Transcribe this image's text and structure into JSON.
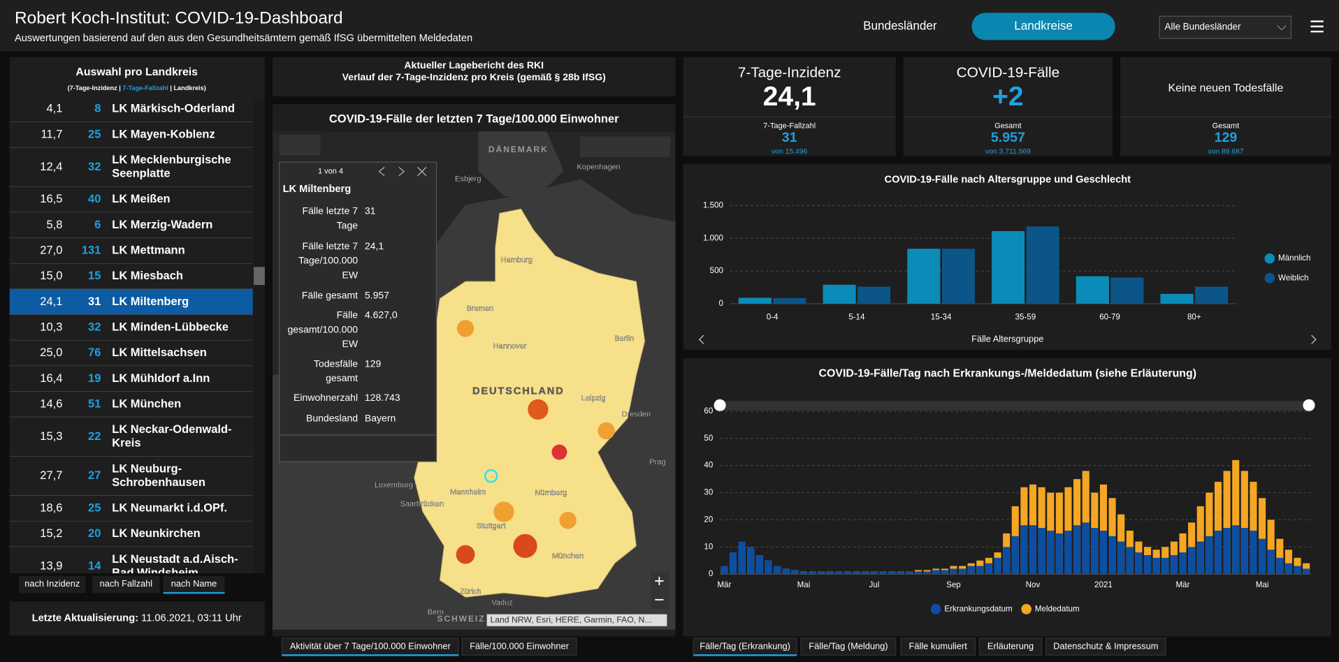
{
  "header": {
    "title": "Robert Koch-Institut: COVID-19-Dashboard",
    "subtitle": "Auswertungen basierend auf den aus den Gesundheitsämtern gemäß IfSG übermittelten Meldedaten",
    "nav": [
      "Bundesländer",
      "Landkreise"
    ],
    "active_nav": 1,
    "dropdown": "Alle Bundesländer"
  },
  "list": {
    "title": "Auswahl pro Landkreis",
    "legend": [
      "(7-Tage-Inzidenz | ",
      "7-Tage-Fallzahl",
      " | Landkreis)"
    ],
    "selected": 7,
    "rows": [
      {
        "incidence": "4,1",
        "cases": 8,
        "name": [
          "LK Märkisch-Oderland"
        ]
      },
      {
        "incidence": "11,7",
        "cases": 25,
        "name": [
          "LK Mayen-Koblenz"
        ]
      },
      {
        "incidence": "12,4",
        "cases": 32,
        "name": [
          "LK Mecklenburgische",
          "Seenplatte"
        ]
      },
      {
        "incidence": "16,5",
        "cases": 40,
        "name": [
          "LK Meißen"
        ]
      },
      {
        "incidence": "5,8",
        "cases": 6,
        "name": [
          "LK Merzig-Wadern"
        ]
      },
      {
        "incidence": "27,0",
        "cases": 131,
        "name": [
          "LK Mettmann"
        ]
      },
      {
        "incidence": "15,0",
        "cases": 15,
        "name": [
          "LK Miesbach"
        ]
      },
      {
        "incidence": "24,1",
        "cases": 31,
        "name": [
          "LK Miltenberg"
        ]
      },
      {
        "incidence": "10,3",
        "cases": 32,
        "name": [
          "LK Minden-Lübbecke"
        ]
      },
      {
        "incidence": "25,0",
        "cases": 76,
        "name": [
          "LK Mittelsachsen"
        ]
      },
      {
        "incidence": "16,4",
        "cases": 19,
        "name": [
          "LK Mühldorf a.Inn"
        ]
      },
      {
        "incidence": "14,6",
        "cases": 51,
        "name": [
          "LK München"
        ]
      },
      {
        "incidence": "15,3",
        "cases": 22,
        "name": [
          "LK Neckar-Odenwald-",
          "Kreis"
        ]
      },
      {
        "incidence": "27,7",
        "cases": 27,
        "name": [
          "LK Neuburg-",
          "Schrobenhausen"
        ]
      },
      {
        "incidence": "18,6",
        "cases": 25,
        "name": [
          "LK Neumarkt i.d.OPf."
        ]
      },
      {
        "incidence": "15,2",
        "cases": 20,
        "name": [
          "LK Neunkirchen"
        ]
      },
      {
        "incidence": "13,9",
        "cases": 14,
        "name": [
          "LK Neustadt a.d.Aisch-",
          "Bad Windsheim"
        ]
      }
    ],
    "sort_buttons": [
      "nach Inzidenz",
      "nach Fallzahl",
      "nach Name"
    ],
    "active_sort": 2,
    "updated_label": "Letzte Aktualisierung:",
    "updated_value": "11.06.2021, 03:11 Uhr"
  },
  "map": {
    "header": [
      "Aktueller Lagebericht des RKI",
      "Verlauf der 7-Tage-Inzidenz pro Kreis (gemäß § 28b IfSG)"
    ],
    "title": "COVID-19-Fälle der letzten 7 Tage/100.000 Einwohner",
    "labels": [
      "DÄNEMARK",
      "Esbjerg",
      "Kopenhagen",
      "Hamburg",
      "Bremen",
      "Hannover",
      "Berlin",
      "DEUTSCHLAND",
      "Leipzig",
      "Dresden",
      "Nürnberg",
      "Stuttgart",
      "München",
      "Prag",
      "Luxemburg",
      "Saarbrücken",
      "Mannheim",
      "Zürich",
      "Vaduz",
      "Bern",
      "SCHWEIZ"
    ],
    "popup": {
      "pager": "1 von 4",
      "title": "LK Miltenberg",
      "fields": [
        {
          "label": [
            "Fälle letzte 7",
            "Tage"
          ],
          "value": "31"
        },
        {
          "label": [
            "Fälle letzte 7",
            "Tage/100.000",
            "EW"
          ],
          "value": "24,1"
        },
        {
          "label": [
            "Fälle gesamt"
          ],
          "value": "5.957"
        },
        {
          "label": [
            "Fälle",
            "gesamt/100.000",
            "EW"
          ],
          "value": "4.627,0"
        },
        {
          "label": [
            "Todesfälle",
            "gesamt"
          ],
          "value": "129"
        },
        {
          "label": [
            "Einwohnerzahl"
          ],
          "value": "128.743"
        },
        {
          "label": [
            "Bundesland"
          ],
          "value": "Bayern"
        }
      ]
    },
    "attribution": "Land NRW, Esri, HERE, Garmin, FAO, N...",
    "tabs": [
      "Aktivität über 7 Tage/100.000 Einwohner",
      "Fälle/100.000 Einwohner"
    ],
    "active_tab": 0
  },
  "kpis": [
    {
      "title": "7-Tage-Inzidenz",
      "value": "24,1",
      "sub_label": "7-Tage-Fallzahl",
      "sub_value": "31",
      "sub_total": "von 15.496"
    },
    {
      "title": "COVID-19-Fälle",
      "value": "+2",
      "sub_label": "Gesamt",
      "sub_value": "5.957",
      "sub_total": "von 3.711.569"
    },
    {
      "title": "Keine neuen Todesfälle",
      "sub_label": "Gesamt",
      "sub_value": "129",
      "sub_total": "von 89.687"
    }
  ],
  "chart_data": [
    {
      "type": "bar",
      "title": "COVID-19-Fälle nach Altersgruppe und Geschlecht",
      "x_label": "Fälle Altersgruppe",
      "categories": [
        "0-4",
        "5-14",
        "15-34",
        "35-59",
        "60-79",
        "80+"
      ],
      "series": [
        {
          "name": "Männlich",
          "color": "#0b8cb8",
          "values": [
            90,
            290,
            840,
            1110,
            420,
            150
          ]
        },
        {
          "name": "Weiblich",
          "color": "#0b5589",
          "values": [
            85,
            260,
            840,
            1180,
            400,
            260
          ]
        }
      ],
      "ylim": [
        0,
        1500
      ],
      "yticks": [
        0,
        500,
        {
          "value": 1000,
          "label": "1.000"
        },
        {
          "value": 1500,
          "label": "1.500"
        }
      ],
      "grid": true,
      "legend": "right"
    },
    {
      "type": "overlap-bar",
      "title": "COVID-19-Fälle/Tag nach Erkrankungs-/Meldedatum (siehe Erläuterung)",
      "categories": [
        "Mär",
        null,
        null,
        null,
        null,
        null,
        null,
        null,
        null,
        "Mai",
        null,
        null,
        null,
        null,
        null,
        null,
        null,
        "Jul",
        null,
        null,
        null,
        null,
        null,
        null,
        null,
        null,
        "Sep",
        null,
        null,
        null,
        null,
        null,
        null,
        null,
        null,
        "Nov",
        null,
        null,
        null,
        null,
        null,
        null,
        null,
        "2021",
        null,
        null,
        null,
        null,
        null,
        null,
        null,
        null,
        "Mär",
        null,
        null,
        null,
        null,
        null,
        null,
        null,
        null,
        "Mai",
        null,
        null,
        null,
        null,
        null
      ],
      "series": [
        {
          "name": "Meldedatum",
          "color": "#f5a623",
          "values": [
            2,
            6,
            10,
            9,
            7,
            5,
            3,
            2,
            1.5,
            1,
            1,
            1,
            1,
            1,
            1,
            1,
            1,
            1,
            1,
            1,
            1,
            1,
            1.5,
            1.5,
            2,
            2,
            3,
            3,
            4,
            5,
            6,
            8,
            15,
            25,
            32,
            33,
            32,
            30,
            30,
            32,
            35,
            38,
            30,
            33,
            28,
            22,
            16,
            12,
            10,
            9,
            10,
            12,
            15,
            19,
            25,
            30,
            34,
            38,
            42,
            38,
            34,
            28,
            20,
            13,
            9,
            6,
            4
          ]
        },
        {
          "name": "Erkrankungsdatum",
          "color": "#0b4ea2",
          "values": [
            3,
            8,
            12,
            10,
            7,
            5,
            3,
            2,
            1.5,
            1,
            1,
            1,
            1,
            1,
            1,
            1,
            1,
            1,
            1,
            1,
            1,
            1,
            1,
            1,
            1.5,
            1.5,
            2,
            2,
            3,
            3,
            4,
            6,
            10,
            14,
            18,
            18,
            17,
            16,
            15,
            16,
            18,
            19,
            17,
            16,
            14,
            12,
            10,
            8,
            7,
            6,
            6,
            7,
            8,
            10,
            12,
            14,
            16,
            17,
            18,
            17,
            16,
            13,
            9,
            6,
            4,
            3,
            2
          ]
        }
      ],
      "legend_order": [
        1,
        0
      ],
      "ylim": [
        0,
        60
      ],
      "yticks": [
        0,
        10,
        20,
        30,
        40,
        50,
        60
      ],
      "grid": true,
      "legend": "bottom"
    }
  ],
  "bottom_tabs": [
    "Fälle/Tag (Erkrankung)",
    "Fälle/Tag (Meldung)",
    "Fälle kumuliert",
    "Erläuterung",
    "Datenschutz & Impressum"
  ],
  "active_bottom_tab": 0
}
